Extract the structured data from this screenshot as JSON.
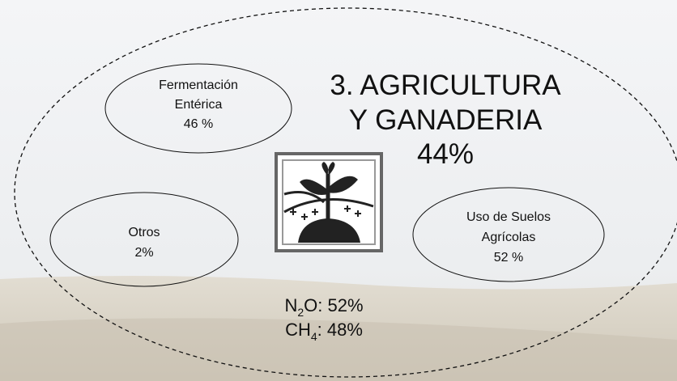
{
  "title": {
    "lines": [
      "3. AGRICULTURA",
      "Y GANADERIA"
    ],
    "share": "44%"
  },
  "nodes": [
    {
      "label_lines": [
        "Fermentación",
        "Entérica"
      ],
      "share": "46 %"
    },
    {
      "label_lines": [
        "Otros"
      ],
      "share": "2%"
    },
    {
      "label_lines": [
        "Uso de Suelos",
        "Agrícolas"
      ],
      "share": "52 %"
    }
  ],
  "gases": [
    {
      "symbol": "N",
      "subscript": "2",
      "suffix": "O: 52%"
    },
    {
      "symbol": "CH",
      "subscript": "4",
      "suffix": ": 48%"
    }
  ]
}
